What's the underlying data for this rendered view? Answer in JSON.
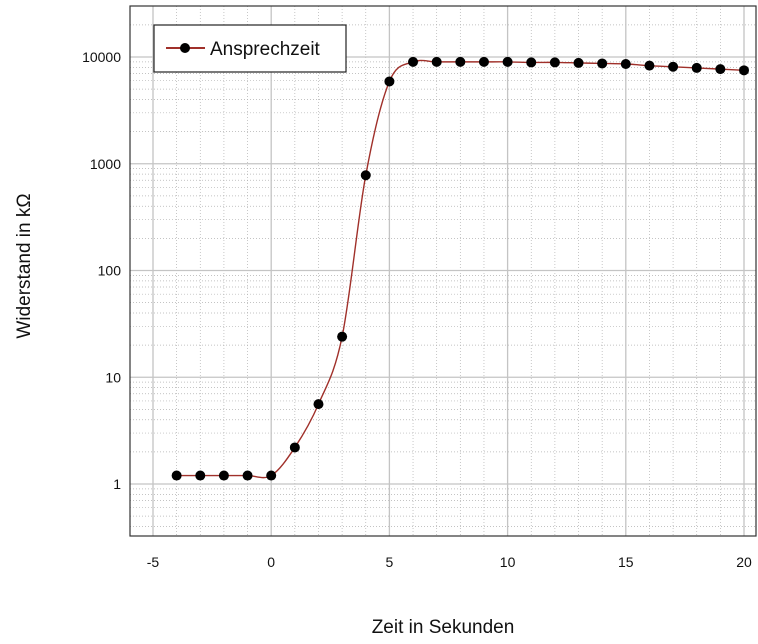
{
  "chart_data": {
    "type": "line",
    "title": "",
    "xlabel": "Zeit in Sekunden",
    "ylabel": "Widerstand in kΩ",
    "xlim": [
      -5,
      20
    ],
    "ylim": [
      0.5,
      20000
    ],
    "yscale": "log",
    "grid": true,
    "legend_position": "top-left",
    "x_ticks": [
      "-5",
      "0",
      "5",
      "10",
      "15",
      "20"
    ],
    "y_ticks": [
      "1",
      "10",
      "100",
      "1000",
      "10000"
    ],
    "x_tick_values": [
      -5,
      0,
      5,
      10,
      15,
      20
    ],
    "y_tick_values": [
      1,
      10,
      100,
      1000,
      10000
    ],
    "series": [
      {
        "name": "Ansprechzeit",
        "color": "#a0302a",
        "marker_color": "#000000",
        "x": [
          -4,
          -3,
          -2,
          -1,
          0,
          1,
          2,
          3,
          4,
          5,
          6,
          7,
          8,
          9,
          10,
          11,
          12,
          13,
          14,
          15,
          16,
          17,
          18,
          19,
          20
        ],
        "y": [
          1.2,
          1.2,
          1.2,
          1.2,
          1.2,
          2.2,
          5.6,
          24,
          780,
          5900,
          9000,
          9000,
          9000,
          9000,
          9000,
          8900,
          8900,
          8800,
          8700,
          8600,
          8300,
          8100,
          7900,
          7700,
          7500
        ]
      }
    ]
  }
}
